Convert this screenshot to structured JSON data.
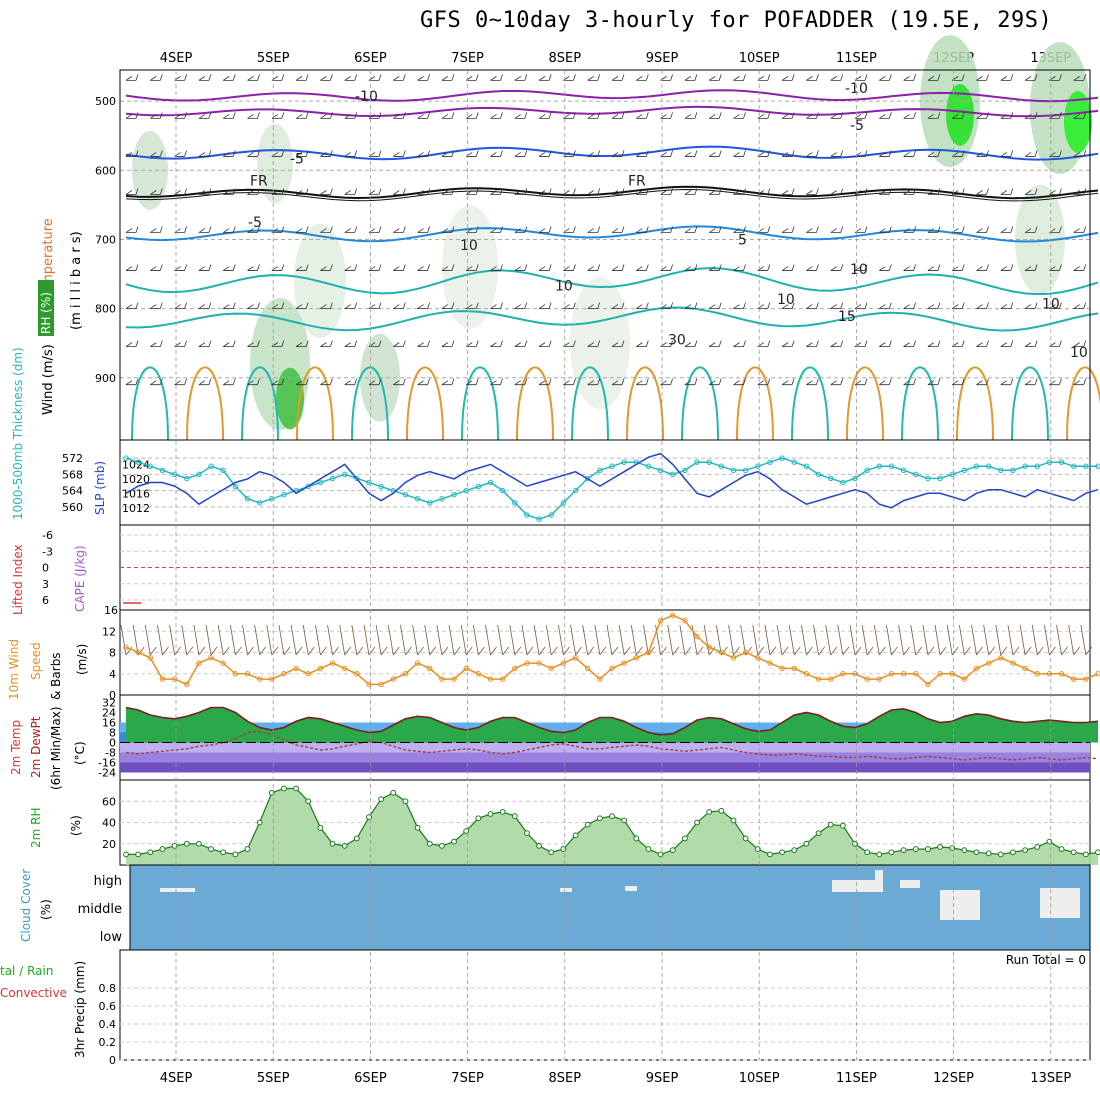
{
  "title": "GFS 0~10day 3-hourly for POFADDER (19.5E, 29S)",
  "dates": [
    "4SEP",
    "5SEP",
    "6SEP",
    "7SEP",
    "8SEP",
    "9SEP",
    "10SEP",
    "11SEP",
    "12SEP",
    "13SEP"
  ],
  "panels": {
    "upper": {
      "ylabel_parts": [
        {
          "text": "Wind (m/s)",
          "color": "#000000"
        },
        {
          "text": "(°C)",
          "color": "#cc0000"
        },
        {
          "text": "Temperature",
          "color": "#e07030"
        }
      ],
      "rh_label": "RH (%)",
      "unit_label": "(m i l l i b a r s)",
      "pressure_ticks": [
        500,
        600,
        700,
        800,
        900
      ],
      "contour_labels": [
        "-10",
        "-10",
        "-5",
        "-5",
        "FR",
        "FR",
        "-5",
        "5",
        "10",
        "10",
        "15",
        "10",
        "10",
        "10",
        "30",
        "10"
      ]
    },
    "thickness": {
      "left_label": "1000-500mb Thickness (dm)",
      "right_label": "SLP (mb)",
      "left_ticks": [
        572,
        568,
        564,
        560
      ],
      "right_ticks": [
        1024,
        1020,
        1016,
        1012
      ]
    },
    "cape": {
      "li_label": "Lifted Index",
      "cape_label": "CAPE (J/kg)",
      "left_ticks": [
        "-6",
        "-3",
        "0",
        "3",
        "6"
      ],
      "right_ticks": [
        "16"
      ]
    },
    "wind10m": {
      "label_a": "10m Wind",
      "label_b": "Speed",
      "label_c": "& Barbs",
      "unit": "(m/s)",
      "ticks": [
        12,
        8,
        4,
        0
      ]
    },
    "temp2m": {
      "label_a": "2m Temp",
      "label_b": "2m DewPt",
      "label_c": "(6hr Min/Max)",
      "unit": "(°C)",
      "ticks": [
        "32",
        "24",
        "16",
        "8",
        "0",
        "-8",
        "-16",
        "-24"
      ]
    },
    "rh2m": {
      "label": "2m RH",
      "unit": "(%)",
      "ticks": [
        60,
        40,
        20
      ]
    },
    "cloud": {
      "label": "Cloud Cover",
      "unit": "(%)",
      "levels": [
        "high",
        "middle",
        "low"
      ]
    },
    "precip": {
      "label_a": "tal / Rain",
      "label_b": "Convective",
      "ylabel": "3hr Precip (mm)",
      "ticks": [
        "0.8",
        "0.6",
        "0.4",
        "0.2",
        "0"
      ],
      "run_total": "Run Total = 0"
    }
  },
  "chart_data": [
    {
      "type": "line",
      "panel": "thickness",
      "name": "1000-500mb Thickness",
      "color": "#22b8c0",
      "values": [
        572,
        571,
        570,
        569,
        568,
        567,
        568,
        570,
        569,
        565,
        562,
        561,
        562,
        563,
        564,
        565,
        566,
        567,
        568,
        567,
        566,
        565,
        564,
        563,
        562,
        561,
        562,
        563,
        564,
        565,
        566,
        564,
        561,
        558,
        557,
        558,
        561,
        564,
        567,
        569,
        570,
        571,
        571,
        570,
        569,
        568,
        569,
        571,
        571,
        570,
        569,
        569,
        570,
        571,
        572,
        571,
        570,
        568,
        567,
        566,
        567,
        569,
        570,
        570,
        569,
        568,
        567,
        567,
        568,
        569,
        570,
        570,
        569,
        569,
        570,
        570,
        571,
        571,
        570,
        570,
        570
      ]
    },
    {
      "type": "line",
      "panel": "thickness",
      "name": "SLP",
      "color": "#2244cc",
      "values": [
        1016,
        1018,
        1019,
        1019,
        1018,
        1016,
        1013,
        1015,
        1017,
        1019,
        1020,
        1022,
        1021,
        1019,
        1016,
        1018,
        1020,
        1022,
        1024,
        1020,
        1016,
        1014,
        1016,
        1019,
        1021,
        1022,
        1021,
        1020,
        1022,
        1023,
        1024,
        1022,
        1020,
        1018,
        1019,
        1020,
        1021,
        1022,
        1020,
        1018,
        1020,
        1022,
        1024,
        1026,
        1027,
        1024,
        1020,
        1016,
        1015,
        1017,
        1019,
        1021,
        1022,
        1020,
        1017,
        1015,
        1013,
        1014,
        1015,
        1016,
        1017,
        1016,
        1013,
        1012,
        1014,
        1015,
        1016,
        1016,
        1015,
        1014,
        1016,
        1017,
        1017,
        1016,
        1015,
        1017,
        1016,
        1015,
        1014,
        1016,
        1017
      ]
    },
    {
      "type": "line",
      "panel": "wind10m",
      "name": "10m Wind Speed",
      "color": "#e89020",
      "values": [
        9,
        8,
        7,
        3,
        3,
        2,
        6,
        7,
        6,
        4,
        4,
        3,
        3,
        4,
        5,
        4,
        5,
        6,
        5,
        4,
        2,
        2,
        3,
        4,
        6,
        5,
        3,
        3,
        5,
        4,
        3,
        3,
        5,
        6,
        6,
        5,
        6,
        7,
        5,
        3,
        5,
        6,
        7,
        8,
        14,
        15,
        14,
        11,
        9,
        8,
        7,
        8,
        7,
        6,
        5,
        5,
        4,
        3,
        3,
        4,
        4,
        3,
        3,
        4,
        4,
        4,
        2,
        4,
        4,
        3,
        5,
        6,
        7,
        6,
        5,
        4,
        4,
        4,
        3,
        3,
        4
      ]
    },
    {
      "type": "area",
      "panel": "temp2m",
      "name": "2m Temp",
      "color": "#7a2020",
      "values": [
        28,
        26,
        22,
        20,
        19,
        21,
        24,
        28,
        28,
        24,
        17,
        12,
        10,
        12,
        17,
        20,
        19,
        16,
        13,
        10,
        8,
        9,
        14,
        19,
        21,
        20,
        16,
        12,
        10,
        12,
        17,
        20,
        20,
        16,
        12,
        9,
        8,
        10,
        16,
        20,
        20,
        17,
        12,
        8,
        6,
        7,
        12,
        18,
        20,
        19,
        15,
        11,
        9,
        10,
        16,
        22,
        24,
        22,
        17,
        13,
        12,
        15,
        21,
        26,
        27,
        24,
        19,
        16,
        17,
        21,
        23,
        22,
        19,
        17,
        16,
        17,
        18,
        17,
        16,
        16,
        17
      ]
    },
    {
      "type": "line",
      "panel": "temp2m",
      "name": "2m DewPt",
      "color": "#a04040",
      "values": [
        -8,
        -9,
        -8,
        -7,
        -6,
        -5,
        -3,
        -2,
        0,
        3,
        8,
        9,
        6,
        2,
        -2,
        -4,
        -6,
        -5,
        -3,
        -1,
        1,
        0,
        -3,
        -6,
        -7,
        -8,
        -7,
        -6,
        -5,
        -6,
        -8,
        -9,
        -8,
        -6,
        -4,
        -2,
        -1,
        -3,
        -5,
        -5,
        -4,
        -3,
        -2,
        -3,
        -5,
        -6,
        -7,
        -6,
        -5,
        -4,
        -6,
        -8,
        -9,
        -10,
        -10,
        -9,
        -10,
        -11,
        -11,
        -12,
        -12,
        -11,
        -12,
        -13,
        -13,
        -12,
        -11,
        -12,
        -13,
        -14,
        -13,
        -12,
        -13,
        -14,
        -13,
        -12,
        -13,
        -14,
        -13,
        -12,
        -13
      ]
    },
    {
      "type": "area",
      "panel": "rh2m",
      "name": "2m RH",
      "color": "#22aa22",
      "values": [
        10,
        10,
        12,
        15,
        18,
        20,
        20,
        15,
        12,
        10,
        15,
        40,
        68,
        72,
        72,
        60,
        35,
        20,
        18,
        25,
        45,
        62,
        68,
        60,
        35,
        20,
        18,
        22,
        32,
        44,
        48,
        50,
        46,
        30,
        18,
        12,
        15,
        28,
        38,
        44,
        46,
        42,
        25,
        15,
        10,
        14,
        25,
        40,
        50,
        51,
        42,
        25,
        15,
        10,
        12,
        14,
        20,
        30,
        38,
        37,
        20,
        12,
        10,
        12,
        14,
        15,
        15,
        17,
        16,
        14,
        12,
        11,
        10,
        12,
        14,
        17,
        22,
        15,
        12,
        10,
        12
      ]
    },
    {
      "type": "bar",
      "panel": "cloud",
      "name": "Cloud Cover",
      "categories": [
        "high",
        "middle",
        "low"
      ]
    },
    {
      "type": "bar",
      "panel": "precip",
      "name": "3hr Precip",
      "values": [],
      "ylim": [
        0,
        1
      ]
    }
  ]
}
